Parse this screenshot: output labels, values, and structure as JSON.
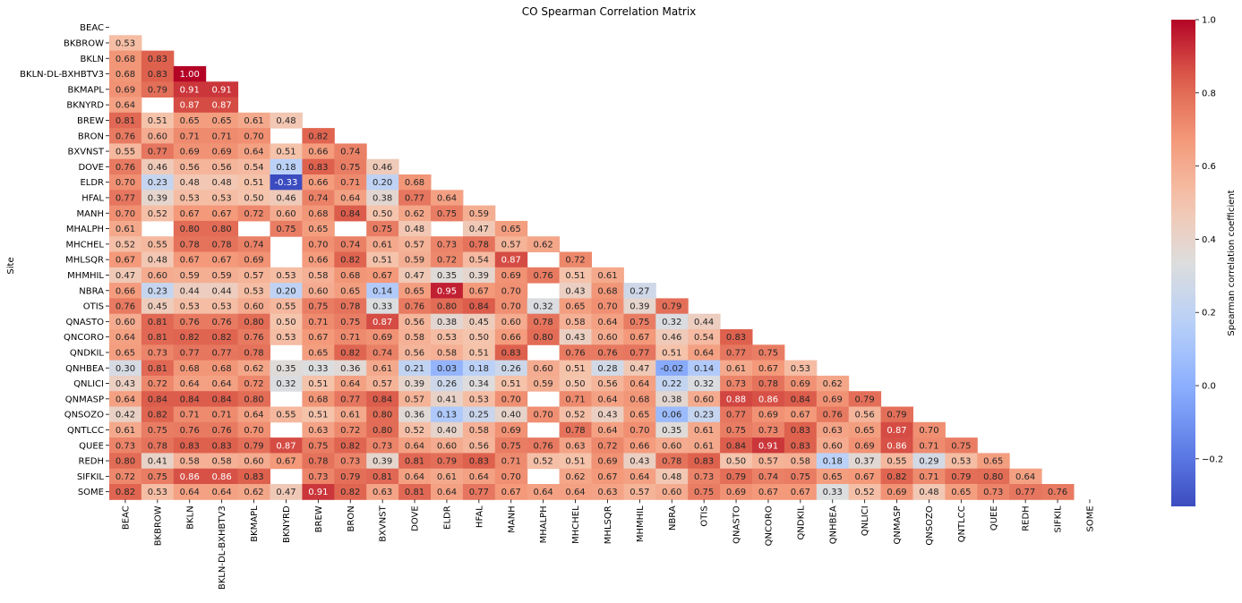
{
  "chart_data": {
    "type": "heatmap",
    "title": "CO Spearman Correlation Matrix",
    "ylabel": "Site",
    "xlabel": "",
    "colorbar_label": "Spearman correlation coefficient",
    "colorbar_ticks": [
      -0.2,
      0.0,
      0.2,
      0.4,
      0.6,
      0.8,
      1.0
    ],
    "colorbar_tick_labels": [
      "−0.2",
      "0.0",
      "0.2",
      "0.4",
      "0.6",
      "0.8",
      "1.0"
    ],
    "vmin": -0.33,
    "vmax": 1.0,
    "colormap": "coolwarm",
    "masked": "upper triangle including diagonal",
    "sites": [
      "BEAC",
      "BKBROW",
      "BKLN",
      "BKLN-DL-BXHBTV3",
      "BKMAPL",
      "BKNYRD",
      "BREW",
      "BRON",
      "BXVNST",
      "DOVE",
      "ELDR",
      "HFAL",
      "MANH",
      "MHALPH",
      "MHCHEL",
      "MHLSQR",
      "MHMHIL",
      "NBRA",
      "OTIS",
      "QNASTO",
      "QNCORO",
      "QNDKIL",
      "QNHBEA",
      "QNLICI",
      "QNMASP",
      "QNSOZO",
      "QNTLCC",
      "QUEE",
      "REDH",
      "SIFKIL",
      "SOME"
    ],
    "rows": [
      [],
      [
        0.53
      ],
      [
        0.68,
        0.83
      ],
      [
        0.68,
        0.83,
        1.0
      ],
      [
        0.69,
        0.79,
        0.91,
        0.91
      ],
      [
        0.64,
        null,
        0.87,
        0.87,
        null
      ],
      [
        0.81,
        0.51,
        0.65,
        0.65,
        0.61,
        0.48
      ],
      [
        0.76,
        0.6,
        0.71,
        0.71,
        0.7,
        null,
        0.82
      ],
      [
        0.55,
        0.77,
        0.69,
        0.69,
        0.64,
        0.51,
        0.66,
        0.74
      ],
      [
        0.76,
        0.46,
        0.56,
        0.56,
        0.54,
        0.18,
        0.83,
        0.75,
        0.46
      ],
      [
        0.7,
        0.23,
        0.48,
        0.48,
        0.51,
        -0.33,
        0.66,
        0.71,
        0.2,
        0.68
      ],
      [
        0.77,
        0.39,
        0.53,
        0.53,
        0.5,
        0.46,
        0.74,
        0.64,
        0.38,
        0.77,
        0.64
      ],
      [
        0.7,
        0.52,
        0.67,
        0.67,
        0.72,
        0.6,
        0.68,
        0.84,
        0.5,
        0.62,
        0.75,
        0.59
      ],
      [
        0.61,
        null,
        0.8,
        0.8,
        null,
        0.75,
        0.65,
        null,
        0.75,
        0.48,
        null,
        0.47,
        0.65
      ],
      [
        0.52,
        0.55,
        0.78,
        0.78,
        0.74,
        null,
        0.7,
        0.74,
        0.61,
        0.57,
        0.73,
        0.78,
        0.57,
        0.62
      ],
      [
        0.67,
        0.48,
        0.67,
        0.67,
        0.69,
        null,
        0.66,
        0.82,
        0.51,
        0.59,
        0.72,
        0.54,
        0.87,
        null,
        0.72
      ],
      [
        0.47,
        0.6,
        0.59,
        0.59,
        0.57,
        0.53,
        0.58,
        0.68,
        0.67,
        0.47,
        0.35,
        0.39,
        0.69,
        0.76,
        0.51,
        0.61
      ],
      [
        0.66,
        0.23,
        0.44,
        0.44,
        0.53,
        0.2,
        0.6,
        0.65,
        0.14,
        0.65,
        0.95,
        0.67,
        0.7,
        null,
        0.43,
        0.68,
        0.27
      ],
      [
        0.76,
        0.45,
        0.53,
        0.53,
        0.6,
        0.55,
        0.75,
        0.78,
        0.33,
        0.76,
        0.8,
        0.84,
        0.7,
        0.32,
        0.65,
        0.7,
        0.39,
        0.79
      ],
      [
        0.6,
        0.81,
        0.76,
        0.76,
        0.8,
        0.5,
        0.71,
        0.75,
        0.87,
        0.56,
        0.38,
        0.45,
        0.6,
        0.78,
        0.58,
        0.64,
        0.75,
        0.32,
        0.44
      ],
      [
        0.64,
        0.81,
        0.82,
        0.82,
        0.76,
        0.53,
        0.67,
        0.71,
        0.69,
        0.58,
        0.53,
        0.5,
        0.66,
        0.8,
        0.43,
        0.6,
        0.67,
        0.46,
        0.54,
        0.83
      ],
      [
        0.65,
        0.73,
        0.77,
        0.77,
        0.78,
        null,
        0.65,
        0.82,
        0.74,
        0.56,
        0.58,
        0.51,
        0.83,
        null,
        0.76,
        0.76,
        0.77,
        0.51,
        0.64,
        0.77,
        0.75
      ],
      [
        0.3,
        0.81,
        0.68,
        0.68,
        0.62,
        0.35,
        0.33,
        0.36,
        0.61,
        0.21,
        0.03,
        0.18,
        0.26,
        0.6,
        0.51,
        0.28,
        0.47,
        -0.02,
        0.14,
        0.61,
        0.67,
        0.53
      ],
      [
        0.43,
        0.72,
        0.64,
        0.64,
        0.72,
        0.32,
        0.51,
        0.64,
        0.57,
        0.39,
        0.26,
        0.34,
        0.51,
        0.59,
        0.5,
        0.56,
        0.64,
        0.22,
        0.32,
        0.73,
        0.78,
        0.69,
        0.62
      ],
      [
        0.64,
        0.84,
        0.84,
        0.84,
        0.8,
        null,
        0.68,
        0.77,
        0.84,
        0.57,
        0.41,
        0.53,
        0.7,
        null,
        0.71,
        0.64,
        0.68,
        0.38,
        0.6,
        0.88,
        0.86,
        0.84,
        0.69,
        0.79
      ],
      [
        0.42,
        0.82,
        0.71,
        0.71,
        0.64,
        0.55,
        0.51,
        0.61,
        0.8,
        0.36,
        0.13,
        0.25,
        0.4,
        0.7,
        0.52,
        0.43,
        0.65,
        0.06,
        0.23,
        0.77,
        0.69,
        0.67,
        0.76,
        0.56,
        0.79
      ],
      [
        0.61,
        0.75,
        0.76,
        0.76,
        0.7,
        null,
        0.63,
        0.72,
        0.8,
        0.52,
        0.4,
        0.58,
        0.69,
        null,
        0.78,
        0.64,
        0.7,
        0.35,
        0.61,
        0.75,
        0.73,
        0.83,
        0.63,
        0.65,
        0.87,
        0.7
      ],
      [
        0.73,
        0.78,
        0.83,
        0.83,
        0.79,
        0.87,
        0.75,
        0.82,
        0.73,
        0.64,
        0.6,
        0.56,
        0.75,
        0.76,
        0.63,
        0.72,
        0.66,
        0.6,
        0.61,
        0.84,
        0.91,
        0.83,
        0.6,
        0.69,
        0.86,
        0.71,
        0.75
      ],
      [
        0.8,
        0.41,
        0.58,
        0.58,
        0.6,
        0.67,
        0.78,
        0.73,
        0.39,
        0.81,
        0.79,
        0.83,
        0.71,
        0.52,
        0.51,
        0.69,
        0.43,
        0.78,
        0.83,
        0.5,
        0.57,
        0.58,
        0.18,
        0.37,
        0.55,
        0.29,
        0.53,
        0.65
      ],
      [
        0.72,
        0.75,
        0.86,
        0.86,
        0.83,
        null,
        0.73,
        0.79,
        0.81,
        0.64,
        0.61,
        0.64,
        0.7,
        null,
        0.62,
        0.67,
        0.64,
        0.48,
        0.73,
        0.79,
        0.74,
        0.75,
        0.65,
        0.67,
        0.82,
        0.71,
        0.79,
        0.8,
        0.64
      ],
      [
        0.82,
        0.53,
        0.64,
        0.64,
        0.62,
        0.47,
        0.91,
        0.82,
        0.63,
        0.81,
        0.64,
        0.77,
        0.67,
        0.64,
        0.64,
        0.63,
        0.57,
        0.6,
        0.75,
        0.69,
        0.67,
        0.67,
        0.33,
        0.52,
        0.69,
        0.48,
        0.65,
        0.73,
        0.77,
        0.76
      ]
    ]
  }
}
